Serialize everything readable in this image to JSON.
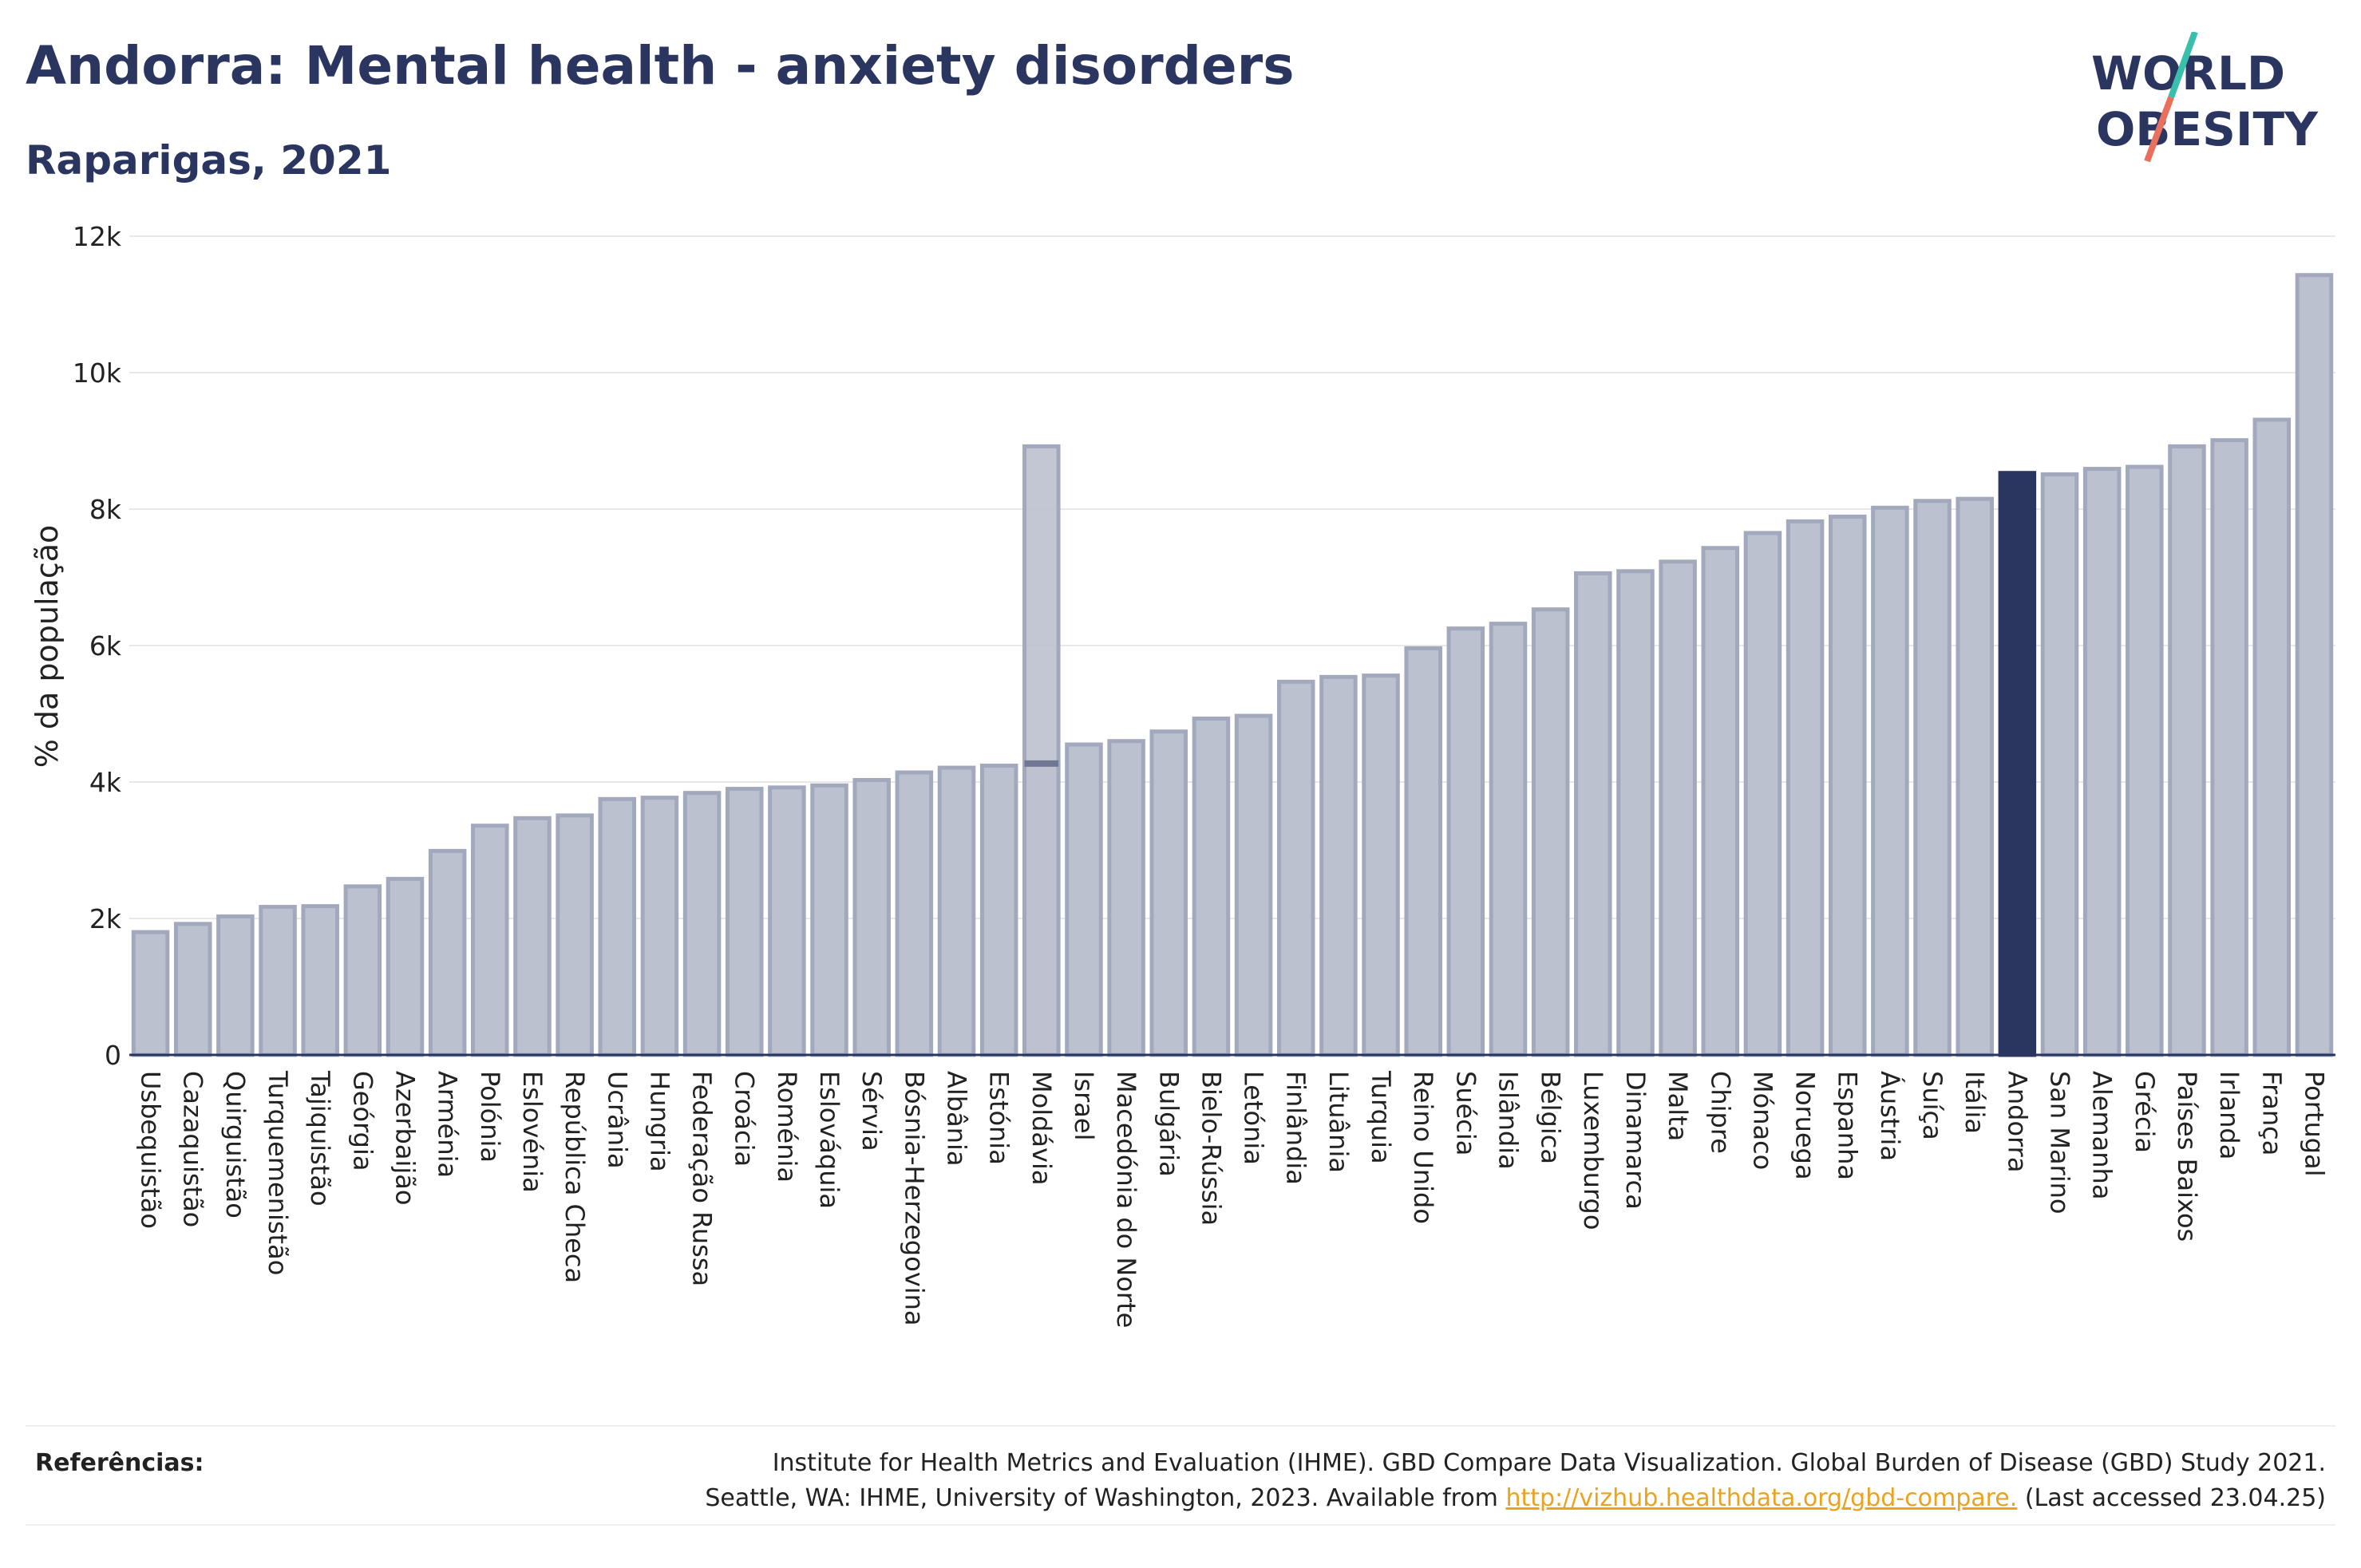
{
  "header": {
    "title": "Andorra: Mental health - anxiety disorders",
    "subtitle": "Raparigas, 2021"
  },
  "logo": {
    "line1": "WORLD",
    "line2": "OBESITY",
    "slash_colors": [
      "#3bbfad",
      "#e8705c"
    ]
  },
  "colors": {
    "bar": "#bcc1cf",
    "bar_border": "#a2a9bd",
    "highlight": "#2a3560",
    "title": "#2a3560",
    "link": "#e8a320"
  },
  "chart_data": {
    "type": "bar",
    "title": "Andorra: Mental health - anxiety disorders",
    "subtitle": "Raparigas, 2021",
    "xlabel": "",
    "ylabel": "% da população",
    "ylim": [
      0,
      12000
    ],
    "yticks": [
      0,
      2000,
      4000,
      6000,
      8000,
      10000,
      12000
    ],
    "ytick_labels": [
      "0",
      "2k",
      "4k",
      "6k",
      "8k",
      "10k",
      "12k"
    ],
    "grid": true,
    "highlight_category": "Andorra",
    "categories": [
      "Usbequistão",
      "Cazaquistão",
      "Quirguistão",
      "Turquemenistão",
      "Tajiquistão",
      "Geórgia",
      "Azerbaijão",
      "Arménia",
      "Polónia",
      "Eslovénia",
      "República Checa",
      "Ucrânia",
      "Hungria",
      "Federação Russa",
      "Croácia",
      "Roménia",
      "Eslováquia",
      "Sérvia",
      "Bósnia-Herzegovina",
      "Albânia",
      "Estónia",
      "Moldávia",
      "Israel",
      "Macedónia do Norte",
      "Bulgária",
      "Bielo-Rússia",
      "Letónia",
      "Finlândia",
      "Lituânia",
      "Turquia",
      "Reino Unido",
      "Suécia",
      "Islândia",
      "Bélgica",
      "Luxemburgo",
      "Dinamarca",
      "Malta",
      "Chipre",
      "Mónaco",
      "Noruega",
      "Espanha",
      "Áustria",
      "Suíça",
      "Itália",
      "Andorra",
      "San Marino",
      "Alemanha",
      "Grécia",
      "Países Baixos",
      "Irlanda",
      "França",
      "Portugal"
    ],
    "values": [
      1800,
      1920,
      2030,
      2170,
      2180,
      2470,
      2580,
      2990,
      3360,
      3470,
      3510,
      3750,
      3770,
      3840,
      3900,
      3920,
      3950,
      4030,
      4140,
      4210,
      4240,
      4270,
      4550,
      4600,
      4740,
      4930,
      4970,
      5470,
      5540,
      5560,
      5960,
      6250,
      6320,
      6530,
      7060,
      7090,
      7230,
      7430,
      7650,
      7820,
      7890,
      8020,
      8120,
      8150,
      8530,
      8510,
      8590,
      8620,
      8920,
      9010,
      9310,
      11430
    ],
    "overlay": {
      "category": "Moldávia",
      "value": 8920
    }
  },
  "footer": {
    "references_label": "Referências:",
    "line1": "Institute for Health Metrics and Evaluation (IHME). GBD Compare Data Visualization. Global Burden of Disease (GBD) Study 2021.",
    "line2_before": "Seattle, WA: IHME, University of Washington, 2023. Available from ",
    "link": "http://vizhub.healthdata.org/gbd-compare.",
    "line2_after": " (Last accessed 23.04.25)"
  }
}
